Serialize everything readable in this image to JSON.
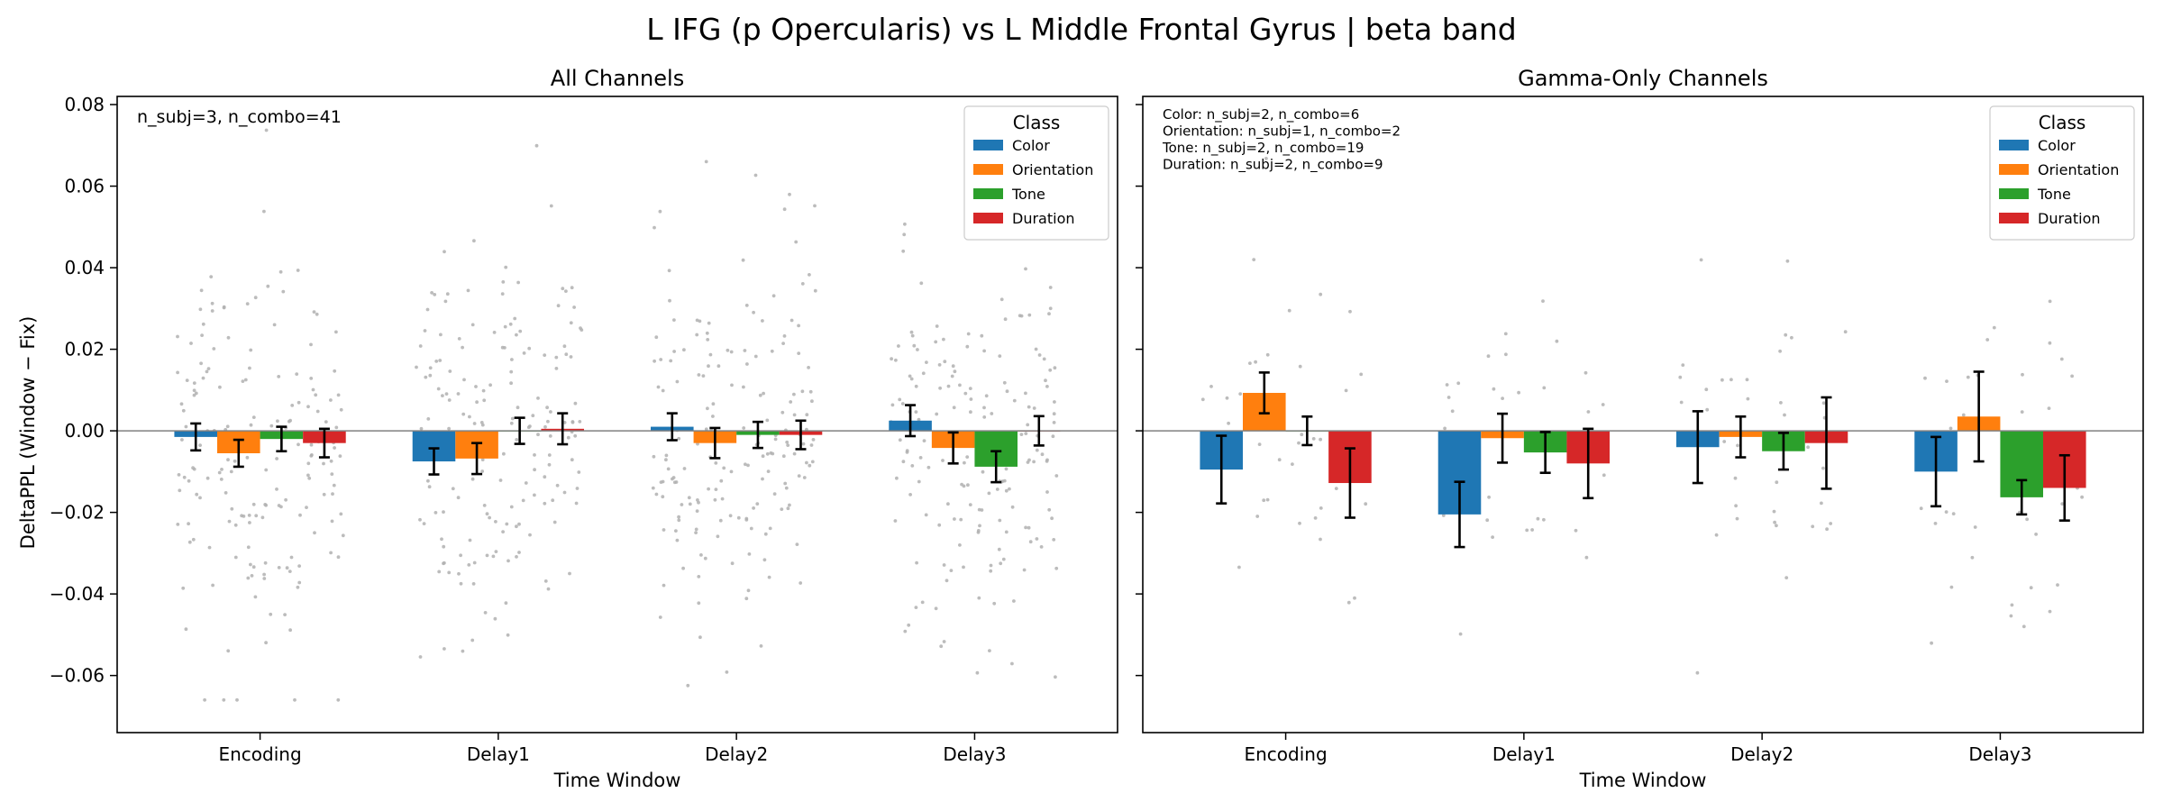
{
  "figure": {
    "title": "L IFG (p Opercularis) vs L Middle Frontal Gyrus  |  beta band",
    "ylabel": "DeltaPPL (Window − Fix)",
    "xlabel": "Time Window"
  },
  "colors": {
    "Color": "#1f77b4",
    "Orientation": "#ff7f0e",
    "Tone": "#2ca02c",
    "Duration": "#d62728",
    "points": "#b0b0b0",
    "errorbar": "#000000",
    "zero_line": "#808080"
  },
  "chart_data": [
    {
      "type": "bar",
      "title": "All Channels",
      "xlabel": "Time Window",
      "ylabel": "DeltaPPL (Window − Fix)",
      "categories": [
        "Encoding",
        "Delay1",
        "Delay2",
        "Delay3"
      ],
      "ylim": [
        -0.074,
        0.082
      ],
      "yticks": [
        -0.06,
        -0.04,
        -0.02,
        0.0,
        0.02,
        0.04,
        0.06,
        0.08
      ],
      "ytick_labels": [
        "−0.06",
        "−0.04",
        "−0.02",
        "0.00",
        "0.02",
        "0.04",
        "0.06",
        "0.08"
      ],
      "legend": {
        "title": "Class",
        "placement": "top-right"
      },
      "annotation": [
        "n_subj=3, n_combo=41"
      ],
      "series": [
        {
          "name": "Color",
          "values": [
            -0.0015,
            -0.0075,
            0.001,
            0.0025
          ],
          "errors": [
            0.0033,
            0.0032,
            0.0033,
            0.0038
          ]
        },
        {
          "name": "Orientation",
          "values": [
            -0.0055,
            -0.0068,
            -0.003,
            -0.0042
          ],
          "errors": [
            0.0033,
            0.0038,
            0.0037,
            0.0038
          ]
        },
        {
          "name": "Tone",
          "values": [
            -0.002,
            0.0,
            -0.001,
            -0.0088
          ],
          "errors": [
            0.003,
            0.0032,
            0.0032,
            0.0038
          ]
        },
        {
          "name": "Duration",
          "values": [
            -0.003,
            0.0005,
            -0.001,
            0.0
          ],
          "errors": [
            0.0035,
            0.0038,
            0.0035,
            0.0036
          ]
        }
      ]
    },
    {
      "type": "bar",
      "title": "Gamma-Only Channels",
      "xlabel": "Time Window",
      "categories": [
        "Encoding",
        "Delay1",
        "Delay2",
        "Delay3"
      ],
      "ylim": [
        -0.074,
        0.082
      ],
      "yticks": [
        -0.06,
        -0.04,
        -0.02,
        0.0,
        0.02,
        0.04,
        0.06,
        0.08
      ],
      "legend": {
        "title": "Class",
        "placement": "top-right"
      },
      "annotation": [
        "Color: n_subj=2, n_combo=6",
        "Orientation: n_subj=1, n_combo=2",
        "Tone: n_subj=2, n_combo=19",
        "Duration: n_subj=2, n_combo=9"
      ],
      "series": [
        {
          "name": "Color",
          "values": [
            -0.0095,
            -0.0205,
            -0.004,
            -0.01
          ],
          "errors": [
            0.0083,
            0.008,
            0.0088,
            0.0085
          ]
        },
        {
          "name": "Orientation",
          "values": [
            0.0093,
            -0.0018,
            -0.0015,
            0.0035
          ],
          "errors": [
            0.005,
            0.006,
            0.005,
            0.011
          ]
        },
        {
          "name": "Tone",
          "values": [
            0.0,
            -0.0053,
            -0.005,
            -0.0163
          ],
          "errors": [
            0.0035,
            0.005,
            0.0045,
            0.0042
          ]
        },
        {
          "name": "Duration",
          "values": [
            -0.0128,
            -0.008,
            -0.003,
            -0.014
          ],
          "errors": [
            0.0085,
            0.0085,
            0.0112,
            0.008
          ]
        }
      ]
    }
  ]
}
